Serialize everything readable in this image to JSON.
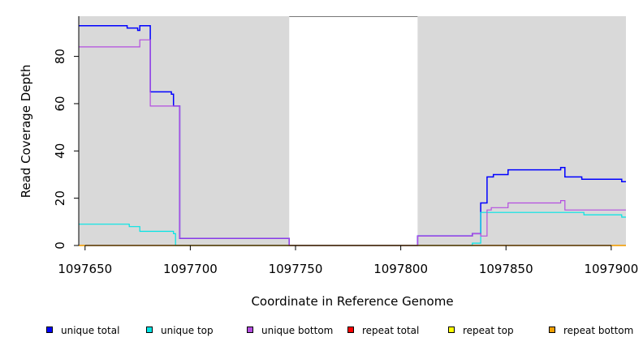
{
  "chart_data": {
    "type": "line",
    "xlabel": "Coordinate in Reference Genome",
    "ylabel": "Read Coverage Depth",
    "xlim": [
      1097647,
      1097907
    ],
    "ylim": [
      0,
      97
    ],
    "x_ticks": [
      1097650,
      1097700,
      1097750,
      1097800,
      1097850,
      1097900
    ],
    "y_ticks": [
      0,
      20,
      40,
      60,
      80
    ],
    "background_color": "#d9d9d9",
    "unshaded_region": [
      1097747,
      1097808
    ],
    "grid": false,
    "legend_position": "bottom",
    "series": [
      {
        "name": "unique total",
        "color": "#0000ff",
        "steps": [
          [
            1097647,
            93
          ],
          [
            1097670,
            92
          ],
          [
            1097675,
            91
          ],
          [
            1097676,
            93
          ],
          [
            1097681,
            65
          ],
          [
            1097691,
            64
          ],
          [
            1097692,
            59
          ],
          [
            1097695,
            3
          ],
          [
            1097747,
            0
          ],
          [
            1097808,
            4
          ],
          [
            1097834,
            5
          ],
          [
            1097838,
            18
          ],
          [
            1097841,
            29
          ],
          [
            1097844,
            30
          ],
          [
            1097851,
            32
          ],
          [
            1097876,
            33
          ],
          [
            1097878,
            29
          ],
          [
            1097886,
            28
          ],
          [
            1097905,
            27
          ],
          [
            1097907,
            27
          ]
        ]
      },
      {
        "name": "unique top",
        "color": "#00e5e5",
        "steps": [
          [
            1097647,
            9
          ],
          [
            1097671,
            8
          ],
          [
            1097676,
            6
          ],
          [
            1097692,
            5
          ],
          [
            1097693,
            0
          ],
          [
            1097834,
            1
          ],
          [
            1097838,
            14
          ],
          [
            1097887,
            13
          ],
          [
            1097905,
            12
          ],
          [
            1097907,
            12
          ]
        ]
      },
      {
        "name": "unique bottom",
        "color": "#b44de0",
        "steps": [
          [
            1097647,
            84
          ],
          [
            1097676,
            87
          ],
          [
            1097681,
            59
          ],
          [
            1097695,
            3
          ],
          [
            1097747,
            0
          ],
          [
            1097808,
            4
          ],
          [
            1097834,
            5
          ],
          [
            1097838,
            4
          ],
          [
            1097841,
            15
          ],
          [
            1097843,
            16
          ],
          [
            1097851,
            18
          ],
          [
            1097876,
            19
          ],
          [
            1097878,
            15
          ],
          [
            1097907,
            15
          ]
        ]
      },
      {
        "name": "repeat total",
        "color": "#ff0000",
        "steps": [
          [
            1097647,
            0
          ],
          [
            1097907,
            0
          ]
        ]
      },
      {
        "name": "repeat top",
        "color": "#ffff00",
        "steps": [
          [
            1097647,
            0
          ],
          [
            1097907,
            0
          ]
        ]
      },
      {
        "name": "repeat bottom",
        "color": "#f0a000",
        "steps": [
          [
            1097647,
            0
          ],
          [
            1097907,
            0
          ]
        ]
      }
    ]
  }
}
